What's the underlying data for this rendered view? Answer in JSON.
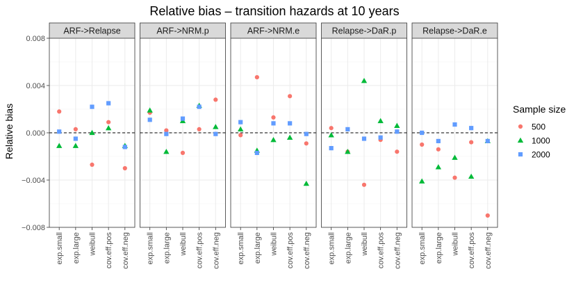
{
  "chart_data": {
    "type": "scatter",
    "title": "Relative bias – transition hazards at 10 years",
    "ylabel": "Relative bias",
    "xlabel": "",
    "ylim": [
      -0.008,
      0.008
    ],
    "yticks": [
      -0.008,
      -0.004,
      0.0,
      0.004,
      0.008
    ],
    "ytick_labels": [
      "−0.008",
      "−0.004",
      "0.000",
      "0.004",
      "0.008"
    ],
    "reference_line": 0,
    "categories": [
      "exp.small",
      "exp.large",
      "weibull",
      "cov.eff.pos",
      "cov.eff.neg"
    ],
    "legend": {
      "title": "Sample size",
      "position": "right",
      "entries": [
        {
          "name": "500",
          "shape": "circle",
          "color": "#F8766D"
        },
        {
          "name": "1000",
          "shape": "triangle",
          "color": "#00BA38"
        },
        {
          "name": "2000",
          "shape": "square",
          "color": "#619CFF"
        }
      ]
    },
    "facets": [
      {
        "label": "ARF->Relapse",
        "series": [
          {
            "name": "500",
            "values": [
              0.0018,
              0.0003,
              -0.0027,
              0.0009,
              -0.003
            ]
          },
          {
            "name": "1000",
            "values": [
              -0.0011,
              -0.0011,
              0.0,
              0.0004,
              -0.0011
            ]
          },
          {
            "name": "2000",
            "values": [
              0.0001,
              -0.0005,
              0.0022,
              0.0025,
              -0.0012
            ]
          }
        ]
      },
      {
        "label": "ARF->NRM.p",
        "series": [
          {
            "name": "500",
            "values": [
              0.0017,
              0.0002,
              -0.0017,
              0.0003,
              0.0028
            ]
          },
          {
            "name": "1000",
            "values": [
              0.0019,
              -0.0016,
              0.001,
              0.0023,
              0.0005
            ]
          },
          {
            "name": "2000",
            "values": [
              0.0011,
              -0.0001,
              0.0012,
              0.0022,
              -0.0001
            ]
          }
        ]
      },
      {
        "label": "ARF->NRM.e",
        "series": [
          {
            "name": "500",
            "values": [
              -0.0002,
              0.0047,
              0.0013,
              0.0031,
              -0.0009
            ]
          },
          {
            "name": "1000",
            "values": [
              0.0003,
              -0.0015,
              -0.0006,
              -0.0004,
              -0.0043
            ]
          },
          {
            "name": "2000",
            "values": [
              0.0009,
              -0.0017,
              0.0008,
              0.0008,
              -0.0001
            ]
          }
        ]
      },
      {
        "label": "Relapse->DaR.p",
        "series": [
          {
            "name": "500",
            "values": [
              0.0004,
              -0.0016,
              -0.0044,
              -0.0006,
              -0.0016
            ]
          },
          {
            "name": "1000",
            "values": [
              -0.0002,
              -0.0016,
              0.0044,
              0.001,
              0.0006
            ]
          },
          {
            "name": "2000",
            "values": [
              -0.0013,
              0.0003,
              -0.0005,
              -0.0004,
              0.0001
            ]
          }
        ]
      },
      {
        "label": "Relapse->DaR.e",
        "series": [
          {
            "name": "500",
            "values": [
              -0.001,
              -0.0014,
              -0.0038,
              -0.0008,
              -0.007
            ]
          },
          {
            "name": "1000",
            "values": [
              -0.0041,
              -0.0029,
              -0.0021,
              -0.0037,
              -0.0007
            ]
          },
          {
            "name": "2000",
            "values": [
              0.0,
              -0.0007,
              0.0007,
              0.0004,
              -0.0007
            ]
          }
        ]
      }
    ]
  }
}
